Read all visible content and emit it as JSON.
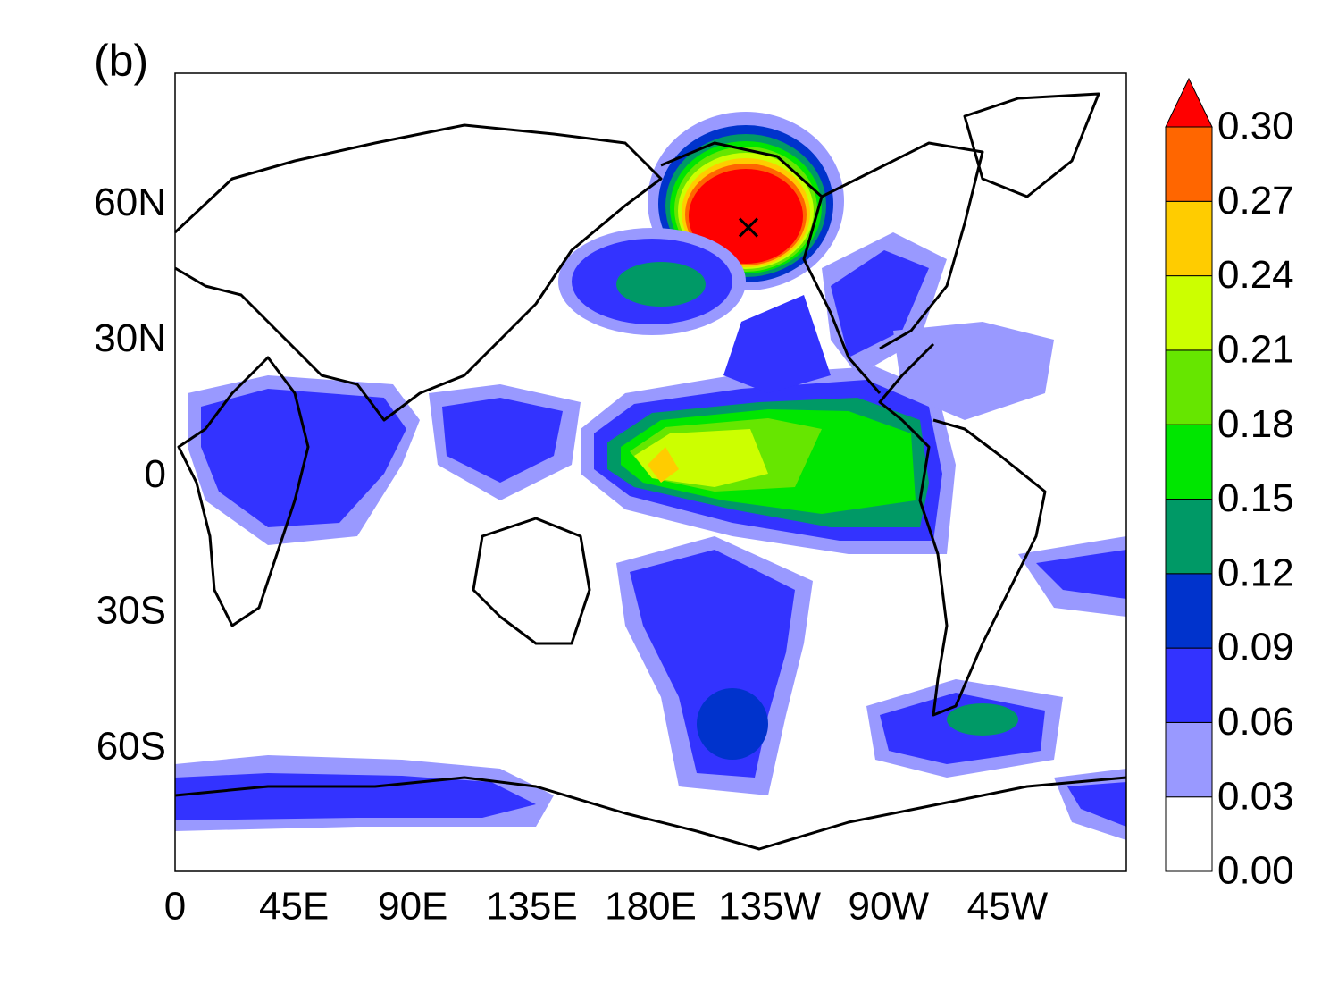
{
  "chart_data": {
    "type": "contour-map",
    "title": "(b)",
    "xlim": [
      0,
      360
    ],
    "ylim": [
      -87,
      89
    ],
    "xticks": [
      0,
      {
        "value": 45,
        "label": "45E"
      },
      {
        "value": 90,
        "label": "90E"
      },
      {
        "value": 135,
        "label": "135E"
      },
      {
        "value": 180,
        "label": "180E"
      },
      {
        "value": 225,
        "label": "135W"
      },
      {
        "value": 270,
        "label": "90W"
      },
      {
        "value": 315,
        "label": "45W"
      }
    ],
    "yticks": [
      {
        "value": -60,
        "label": "60S"
      },
      {
        "value": -30,
        "label": "30S"
      },
      0,
      {
        "value": 30,
        "label": "30N"
      },
      {
        "value": 60,
        "label": "60N"
      }
    ],
    "colorbar": {
      "levels": [
        {
          "value": 0,
          "label": "0.00"
        },
        {
          "value": 0.03,
          "label": "0.03"
        },
        {
          "value": 0.06,
          "label": "0.06"
        },
        {
          "value": 0.09,
          "label": "0.09"
        },
        {
          "value": 0.12,
          "label": "0.12"
        },
        {
          "value": 0.15,
          "label": "0.15"
        },
        {
          "value": 0.18,
          "label": "0.18"
        },
        {
          "value": 0.21,
          "label": "0.21"
        },
        {
          "value": 0.24,
          "label": "0.24"
        },
        {
          "value": 0.27,
          "label": "0.27"
        },
        {
          "value": 0.3,
          "label": "0.30"
        }
      ],
      "colors": [
        "#ffffff",
        "#9999ff",
        "#3333ff",
        "#0033cc",
        "#009966",
        "#00e600",
        "#66e600",
        "#ccff00",
        "#ffcc00",
        "#ff6600",
        "#ff0000"
      ],
      "extend": "max"
    },
    "marker": {
      "lon": 217,
      "lat": 55
    }
  }
}
